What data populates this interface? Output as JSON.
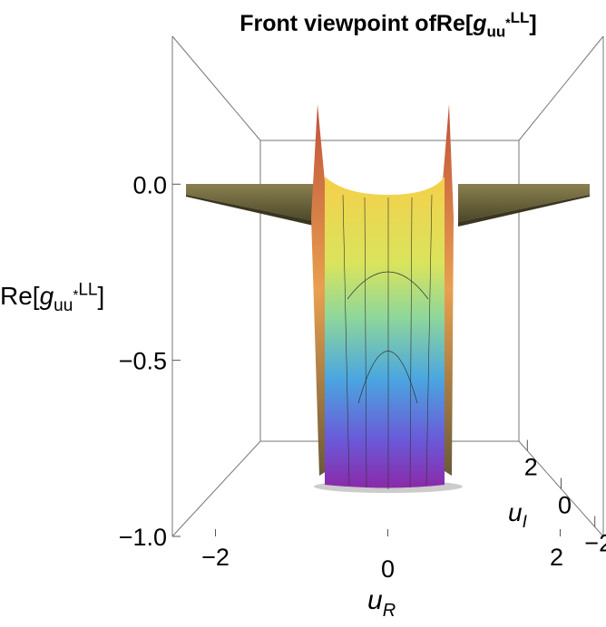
{
  "chart_data": {
    "type": "surface3d",
    "title": "Front viewpoint of",
    "zlabel": {
      "head": "Re[",
      "symbol": "g",
      "sub": "uu",
      "subsup": "*",
      "sup": "LL",
      "tail": "]"
    },
    "xlabel": {
      "symbol": "u",
      "sub": "R"
    },
    "ylabel": {
      "symbol": "u",
      "sub": "I"
    },
    "xlim": [
      -2.5,
      2.5
    ],
    "ylim": [
      -2.5,
      2.5
    ],
    "zlim": [
      -1,
      0.42
    ],
    "xticks": [
      {
        "value": -2,
        "label": "−2"
      },
      0,
      2
    ],
    "yticks": [
      2,
      0,
      {
        "value": -2,
        "label": "−2"
      }
    ],
    "zticks": [
      {
        "value": 0,
        "label": "0.0"
      },
      {
        "value": -0.5,
        "label": "−0.5"
      },
      {
        "value": -1,
        "label": "−1.0"
      }
    ]
  }
}
